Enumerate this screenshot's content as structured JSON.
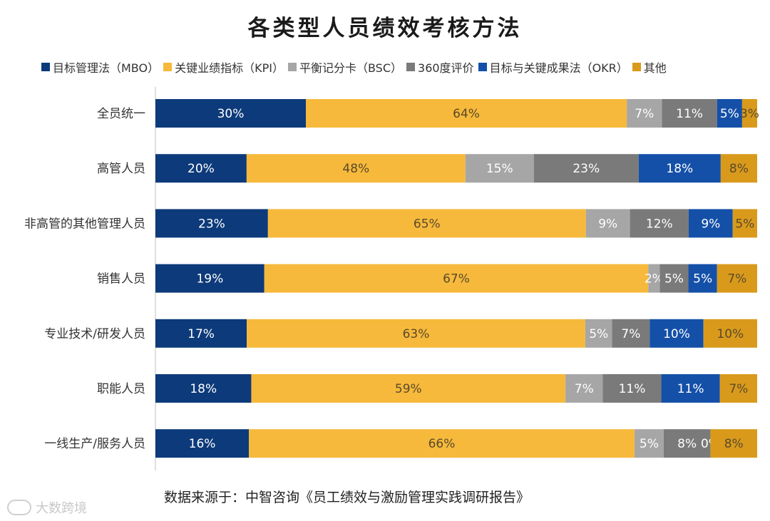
{
  "chart_data": {
    "type": "bar",
    "orientation": "horizontal",
    "stacked": true,
    "title": "各类型人员绩效考核方法",
    "categories": [
      "全员统一",
      "高管人员",
      "非高管的其他管理人员",
      "销售人员",
      "专业技术/研发人员",
      "职能人员",
      "一线生产/服务人员"
    ],
    "series": [
      {
        "name": "目标管理法（MBO）",
        "color": "#0d3a7a",
        "values": [
          30,
          20,
          23,
          19,
          17,
          18,
          16
        ]
      },
      {
        "name": "关键业绩指标（KPI）",
        "color": "#f6b93b",
        "values": [
          64,
          48,
          65,
          67,
          63,
          59,
          66
        ]
      },
      {
        "name": "平衡记分卡（BSC）",
        "color": "#a6a6a6",
        "values": [
          7,
          15,
          9,
          2,
          5,
          7,
          5
        ]
      },
      {
        "name": "360度评价",
        "color": "#7a7a7a",
        "values": [
          11,
          23,
          12,
          5,
          7,
          11,
          8
        ]
      },
      {
        "name": "目标与关键成果法（OKR）",
        "color": "#1450a8",
        "values": [
          5,
          18,
          9,
          5,
          10,
          11,
          0
        ]
      },
      {
        "name": "其他",
        "color": "#d99a1c",
        "values": [
          3,
          8,
          5,
          7,
          10,
          7,
          8
        ]
      }
    ],
    "legend_position": "top",
    "grid": false
  },
  "source_text": "数据来源于：中智咨询《员工绩效与激励管理实践调研报告》",
  "watermark_text": "大数跨境"
}
